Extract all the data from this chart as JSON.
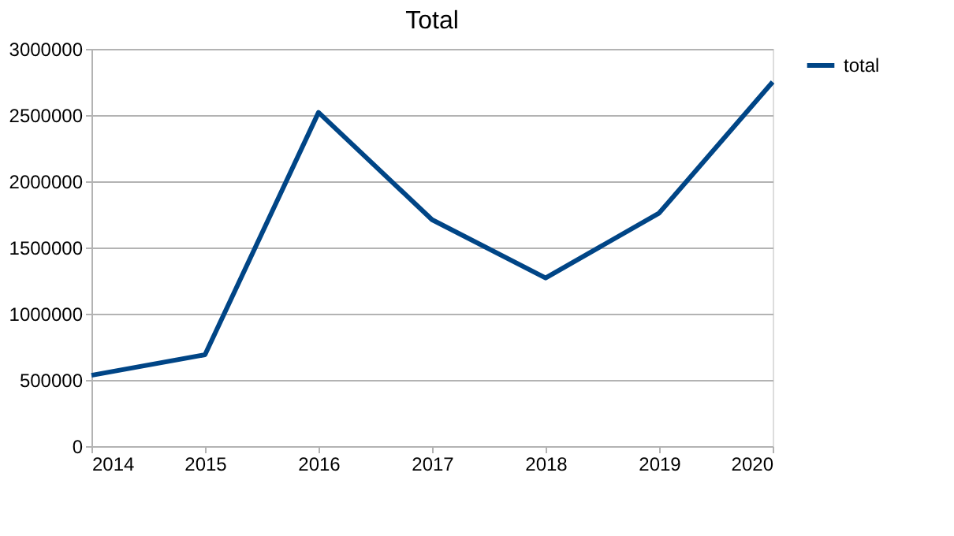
{
  "chart_data": {
    "type": "line",
    "title": "Total",
    "x": [
      2014,
      2015,
      2016,
      2017,
      2018,
      2019,
      2020
    ],
    "series": [
      {
        "name": "total",
        "color": "#004586",
        "values": [
          535000,
          690000,
          2520000,
          1710000,
          1270000,
          1760000,
          2750000
        ]
      }
    ],
    "xlim": [
      2014,
      2020
    ],
    "xticks": [
      2014,
      2015,
      2016,
      2017,
      2018,
      2019,
      2020
    ],
    "ylim": [
      0,
      3000000
    ],
    "yticks": [
      0,
      500000,
      1000000,
      1500000,
      2000000,
      2500000,
      3000000
    ],
    "grid": "y",
    "legend": "right",
    "marker": "none",
    "line_style": "solid"
  }
}
